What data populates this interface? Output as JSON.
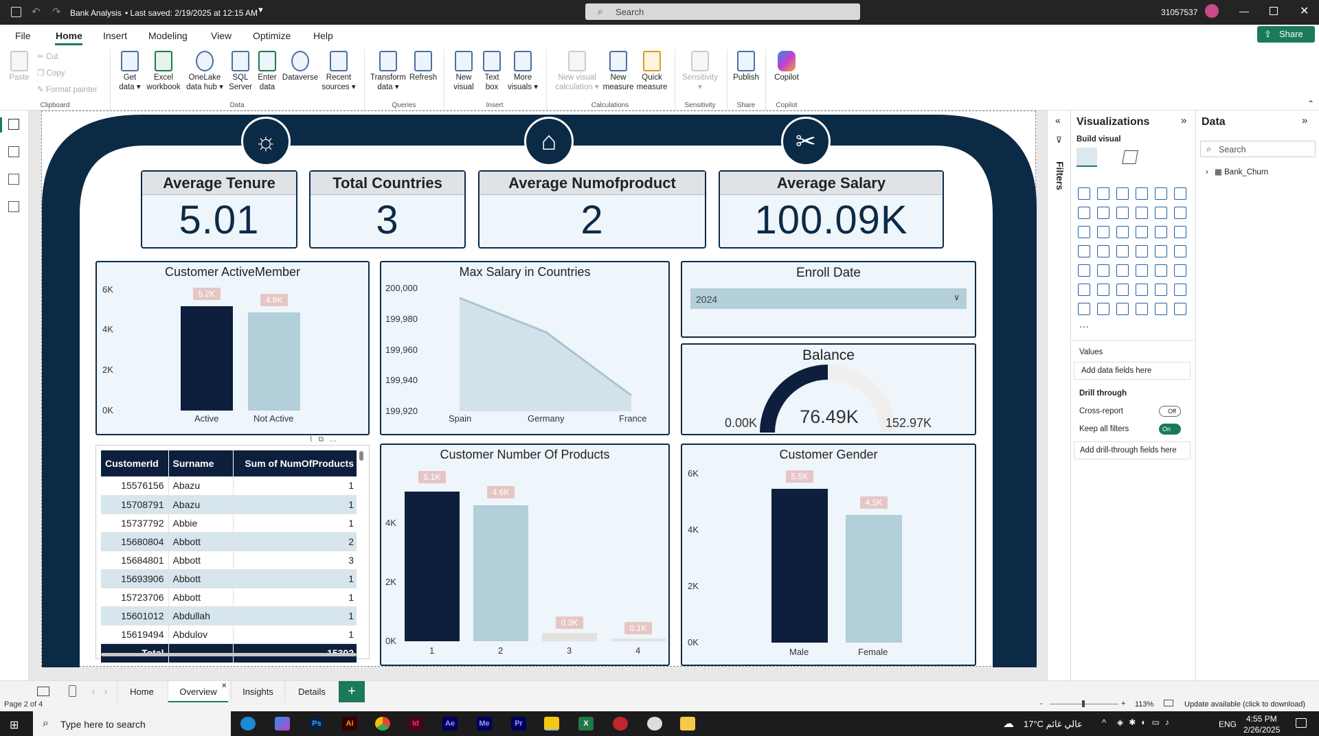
{
  "titlebar": {
    "doc_title": "Bank Analysis",
    "saved": "• Last saved: 2/19/2025 at 12:15 AM",
    "search_placeholder": "Search",
    "user": "31057537"
  },
  "menu": [
    "File",
    "Home",
    "Insert",
    "Modeling",
    "View",
    "Optimize",
    "Help"
  ],
  "share_label": "Share",
  "ribbon": {
    "clipboard": {
      "paste": "Paste",
      "cut": "Cut",
      "copy": "Copy",
      "format": "Format painter",
      "group": "Clipboard"
    },
    "buttons": [
      {
        "l1": "Get",
        "l2": "data ▾"
      },
      {
        "l1": "Excel",
        "l2": "workbook"
      },
      {
        "l1": "OneLake",
        "l2": "data hub ▾"
      },
      {
        "l1": "SQL",
        "l2": "Server"
      },
      {
        "l1": "Enter",
        "l2": "data"
      },
      {
        "l1": "Dataverse",
        "l2": ""
      },
      {
        "l1": "Recent",
        "l2": "sources ▾"
      },
      {
        "l1": "Transform",
        "l2": "data ▾"
      },
      {
        "l1": "Refresh",
        "l2": ""
      },
      {
        "l1": "New",
        "l2": "visual"
      },
      {
        "l1": "Text",
        "l2": "box"
      },
      {
        "l1": "More",
        "l2": "visuals ▾"
      },
      {
        "l1": "New visual",
        "l2": "calculation ▾"
      },
      {
        "l1": "New",
        "l2": "measure"
      },
      {
        "l1": "Quick",
        "l2": "measure"
      },
      {
        "l1": "Sensitivity",
        "l2": "▾"
      },
      {
        "l1": "Publish",
        "l2": ""
      },
      {
        "l1": "Copilot",
        "l2": ""
      }
    ],
    "groups": [
      "Data",
      "Queries",
      "Insert",
      "Calculations",
      "Sensitivity",
      "Share",
      "Copilot"
    ]
  },
  "kpis": [
    {
      "title": "Average Tenure",
      "value": "5.01"
    },
    {
      "title": "Total Countries",
      "value": "3"
    },
    {
      "title": "Average Numofproduct",
      "value": "2"
    },
    {
      "title": "Average Salary",
      "value": "100.09K"
    }
  ],
  "active_member": {
    "title": "Customer ActiveMember",
    "yticks": [
      "6K",
      "4K",
      "2K",
      "0K"
    ],
    "categories": [
      "Active",
      "Not Active"
    ],
    "labels": [
      "5.2K",
      "4.8K"
    ]
  },
  "max_salary": {
    "title": "Max Salary in Countries",
    "yticks": [
      "200,000",
      "199,980",
      "199,960",
      "199,940",
      "199,920"
    ],
    "categories": [
      "Spain",
      "Germany",
      "France"
    ]
  },
  "enroll": {
    "title": "Enroll Date",
    "value": "2024"
  },
  "balance": {
    "title": "Balance",
    "value": "76.49K",
    "min": "0.00K",
    "max": "152.97K",
    "fraction": 0.5
  },
  "num_products": {
    "title": "Customer Number Of Products",
    "yticks": [
      "4K",
      "2K",
      "0K"
    ],
    "categories": [
      "1",
      "2",
      "3",
      "4"
    ],
    "labels": [
      "5.1K",
      "4.6K",
      "0.3K",
      "0.1K"
    ]
  },
  "gender": {
    "title": "Customer Gender",
    "yticks": [
      "6K",
      "4K",
      "2K",
      "0K"
    ],
    "categories": [
      "Male",
      "Female"
    ],
    "labels": [
      "5.5K",
      "4.5K"
    ]
  },
  "table": {
    "headers": [
      "CustomerId",
      "Surname",
      "Sum of NumOfProducts"
    ],
    "rows": [
      [
        "15576156",
        "Abazu",
        "1"
      ],
      [
        "15708791",
        "Abazu",
        "1"
      ],
      [
        "15737792",
        "Abbie",
        "1"
      ],
      [
        "15680804",
        "Abbott",
        "2"
      ],
      [
        "15684801",
        "Abbott",
        "3"
      ],
      [
        "15693906",
        "Abbott",
        "1"
      ],
      [
        "15723706",
        "Abbott",
        "1"
      ],
      [
        "15601012",
        "Abdullah",
        "1"
      ],
      [
        "15619494",
        "Abdulov",
        "1"
      ]
    ],
    "total_label": "Total",
    "total": "15302"
  },
  "viz_pane": {
    "title": "Visualizations",
    "build": "Build visual",
    "values": "Values",
    "add_fields": "Add data fields here",
    "drill": "Drill through",
    "cross": "Cross-report",
    "cross_state": "Off",
    "keep": "Keep all filters",
    "keep_state": "On",
    "add_drill": "Add drill-through fields here"
  },
  "filters_label": "Filters",
  "data_pane": {
    "title": "Data",
    "search": "Search",
    "table": "Bank_Churn"
  },
  "tabs": [
    "Home",
    "Overview",
    "Insights",
    "Details"
  ],
  "status": {
    "page": "Page 2 of 4",
    "zoom": "113%",
    "update": "Update available (click to download)"
  },
  "taskbar": {
    "search": "Type here to search",
    "weather": "17°C عالي غائم",
    "lang": "ENG",
    "time": "4:55 PM",
    "date": "2/26/2025",
    "apps": [
      "Ps",
      "Ai",
      "Id",
      "Ae",
      "Me",
      "Pr"
    ]
  },
  "colors": {
    "navy": "#0d1f3c",
    "light": "#b3cfd9",
    "accent": "#1b7a5a"
  }
}
